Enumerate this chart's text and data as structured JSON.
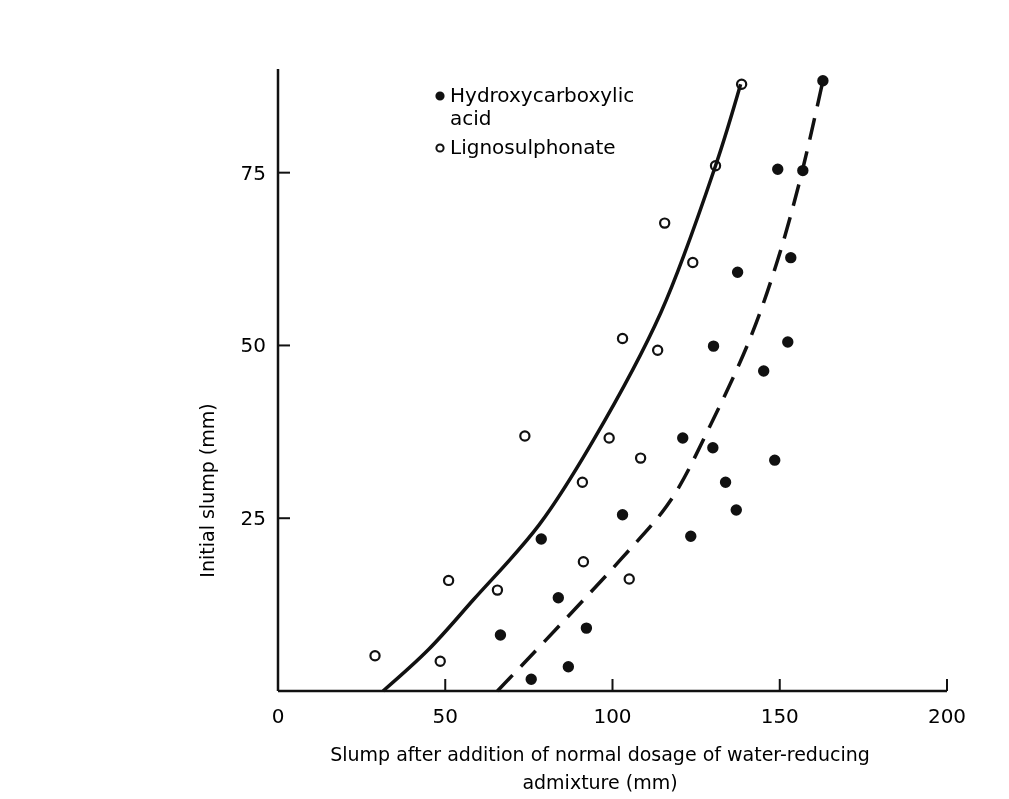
{
  "chart_data": {
    "type": "scatter",
    "xlabel": "Slump after addition of normal dosage of water-reducing admixture (mm)",
    "ylabel": "Initial slump (mm)",
    "xlim": [
      0,
      200
    ],
    "xticks": [
      0,
      50,
      100,
      150,
      200
    ],
    "ylim": [
      0,
      90
    ],
    "yticks": [
      25,
      50,
      75
    ],
    "grid": false,
    "legend": "top",
    "series": [
      {
        "name": "Hydroxycarboxylic acid",
        "marker": "circle",
        "color": "#111111",
        "x": [
          75.7,
          86.8,
          66.5,
          83.8,
          92.2,
          78.7,
          103,
          121,
          130,
          133.8,
          148.5,
          137,
          123.4,
          130.2,
          145.2,
          152.4,
          137.4,
          153.3,
          149.4,
          156.9,
          162.9
        ],
        "values": [
          1.7,
          3.5,
          8.1,
          13.5,
          9.1,
          22,
          25.5,
          36.6,
          35.2,
          30.2,
          33.4,
          26.2,
          22.4,
          49.9,
          46.3,
          50.5,
          60.6,
          62.7,
          75.5,
          75.3,
          88.3
        ]
      },
      {
        "name": "Lignosulphonate",
        "marker": "circle",
        "color": "#ffffff",
        "x": [
          29,
          48.5,
          51,
          65.6,
          73.8,
          91.3,
          91,
          99,
          105,
          108.4,
          103,
          113.5,
          115.6,
          124,
          130.8,
          138.6
        ],
        "values": [
          5.1,
          4.3,
          16,
          14.6,
          36.9,
          18.7,
          30.2,
          36.6,
          16.2,
          33.7,
          51,
          49.3,
          67.7,
          62,
          76,
          87.8
        ]
      },
      {
        "type": "line",
        "marker": "none",
        "line_style": "solid",
        "color": "#111111",
        "x": [
          31.4,
          45,
          58.4,
          78,
          94.3,
          114.4,
          130.8,
          138.3
        ],
        "values": [
          0,
          6,
          13.2,
          24,
          36.3,
          54.7,
          76,
          87.8
        ]
      },
      {
        "type": "line",
        "marker": "none",
        "line_style": "dashed",
        "color": "#111111",
        "x": [
          65.6,
          102.4,
          117.4,
          129.3,
          141.3,
          149.4,
          156.3,
          162.9
        ],
        "values": [
          0,
          19,
          27.6,
          38.5,
          51.2,
          62.4,
          74.4,
          88.3
        ]
      }
    ]
  }
}
